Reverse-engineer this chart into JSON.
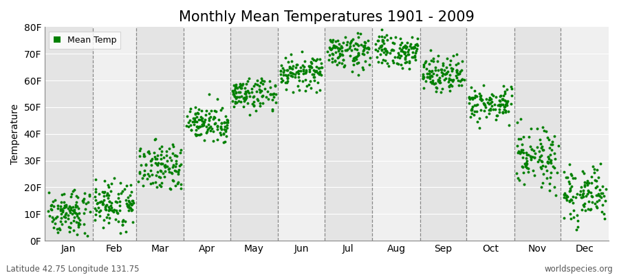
{
  "title": "Monthly Mean Temperatures 1901 - 2009",
  "ylabel": "Temperature",
  "xlabel_bottom_left": "Latitude 42.75 Longitude 131.75",
  "xlabel_bottom_right": "worldspecies.org",
  "legend_label": "Mean Temp",
  "ylim": [
    0,
    80
  ],
  "ytick_labels": [
    "0F",
    "10F",
    "20F",
    "30F",
    "40F",
    "50F",
    "60F",
    "70F",
    "80F"
  ],
  "ytick_values": [
    0,
    10,
    20,
    30,
    40,
    50,
    60,
    70,
    80
  ],
  "months": [
    "Jan",
    "Feb",
    "Mar",
    "Apr",
    "May",
    "Jun",
    "Jul",
    "Aug",
    "Sep",
    "Oct",
    "Nov",
    "Dec"
  ],
  "month_days": [
    31,
    28,
    31,
    30,
    31,
    30,
    31,
    31,
    30,
    31,
    30,
    31
  ],
  "dot_color": "#008000",
  "band_light": "#f0f0f0",
  "band_dark": "#e4e4e4",
  "monthly_mean_temps_F": [
    11,
    14,
    28,
    44,
    55,
    63,
    71,
    71,
    63,
    51,
    31,
    17
  ],
  "monthly_std_F": [
    4,
    4,
    4,
    3,
    3,
    3,
    3,
    3,
    3,
    3,
    5,
    5
  ],
  "monthly_trend_F": [
    5,
    8,
    8,
    5,
    3,
    2,
    2,
    -2,
    -3,
    -5,
    -8,
    -5
  ],
  "n_years": 109,
  "title_fontsize": 15,
  "axis_label_fontsize": 10,
  "tick_fontsize": 10,
  "legend_fontsize": 9,
  "dot_size": 8,
  "dot_alpha": 1.0
}
